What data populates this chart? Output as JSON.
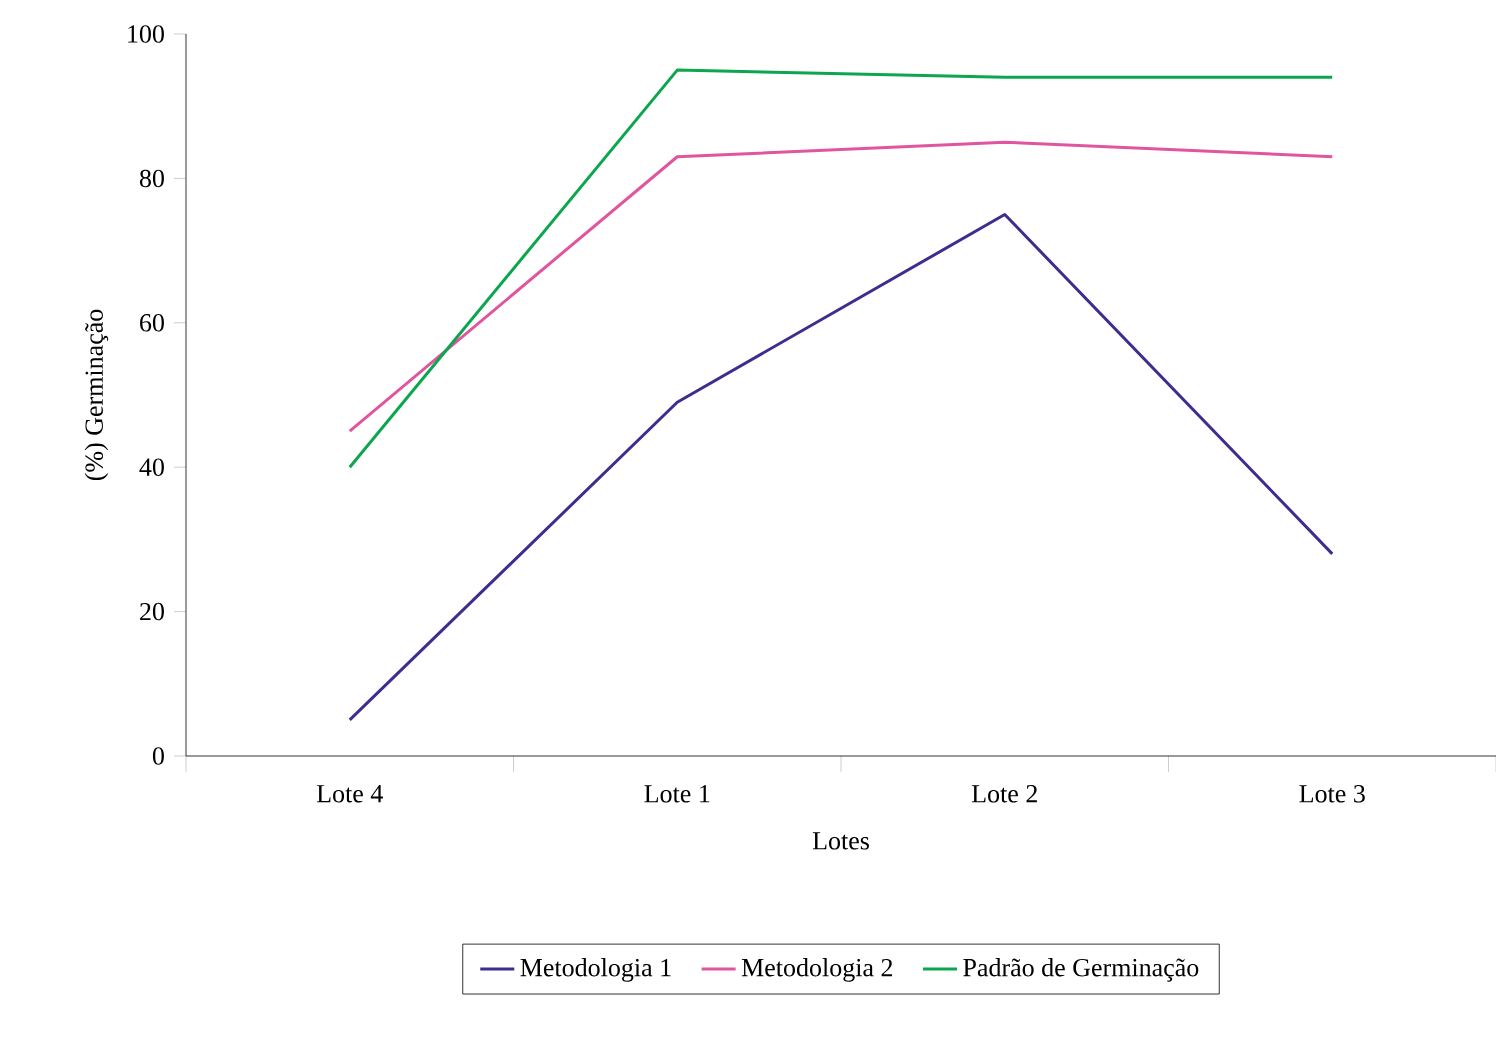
{
  "chart_data": {
    "type": "line",
    "xlabel": "Lotes",
    "ylabel": "(%) Germinação",
    "categories": [
      "Lote 4",
      "Lote 1",
      "Lote 2",
      "Lote 3"
    ],
    "series": [
      {
        "name": "Metodologia 1",
        "color": "#3b2e8e",
        "values": [
          5,
          49,
          75,
          28
        ]
      },
      {
        "name": "Metodologia 2",
        "color": "#e0559e",
        "values": [
          45,
          83,
          85,
          83
        ]
      },
      {
        "name": "Padrão de Germinação",
        "color": "#0ca64e",
        "values": [
          40,
          95,
          94,
          94
        ]
      }
    ],
    "ylim": [
      0,
      100
    ],
    "yticks": [
      0,
      20,
      40,
      60,
      80,
      100
    ],
    "grid": false,
    "legend": "bottom",
    "marker": "none",
    "line_style": "solid"
  }
}
